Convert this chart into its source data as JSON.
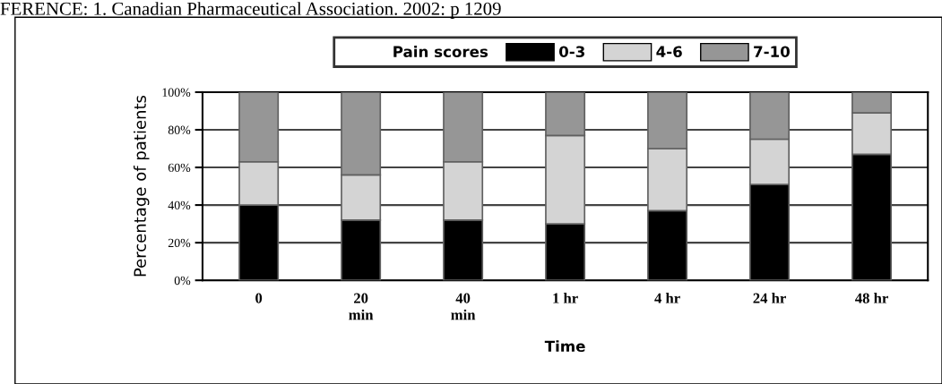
{
  "chart_data": {
    "type": "bar",
    "stacked": true,
    "xlabel": "Time",
    "ylabel": "Percentage of patients",
    "legend_title": "Pain scores",
    "categories": [
      "0",
      "20\nmin",
      "40\nmin",
      "1 hr",
      "4 hr",
      "24 hr",
      "48 hr"
    ],
    "series": [
      {
        "name": "0-3",
        "color": "#000000",
        "values": [
          40,
          32,
          32,
          30,
          37,
          51,
          67
        ]
      },
      {
        "name": "4-6",
        "color": "#d4d4d4",
        "values": [
          23,
          24,
          31,
          47,
          33,
          24,
          22
        ]
      },
      {
        "name": "7-10",
        "color": "#969696",
        "values": [
          37,
          44,
          37,
          23,
          30,
          25,
          11
        ]
      }
    ],
    "ylim": [
      0,
      100
    ],
    "yticks": [
      {
        "value": 0,
        "label": "0%"
      },
      {
        "value": 20,
        "label": "20%"
      },
      {
        "value": 40,
        "label": "40%"
      },
      {
        "value": 60,
        "label": "60%"
      },
      {
        "value": 80,
        "label": "80%"
      },
      {
        "value": 100,
        "label": "100%"
      }
    ],
    "grid": "y",
    "legend": "top",
    "annotations": [
      "FERENCE: 1. Canadian Pharmaceutical Association. 2002: p 1209"
    ]
  }
}
